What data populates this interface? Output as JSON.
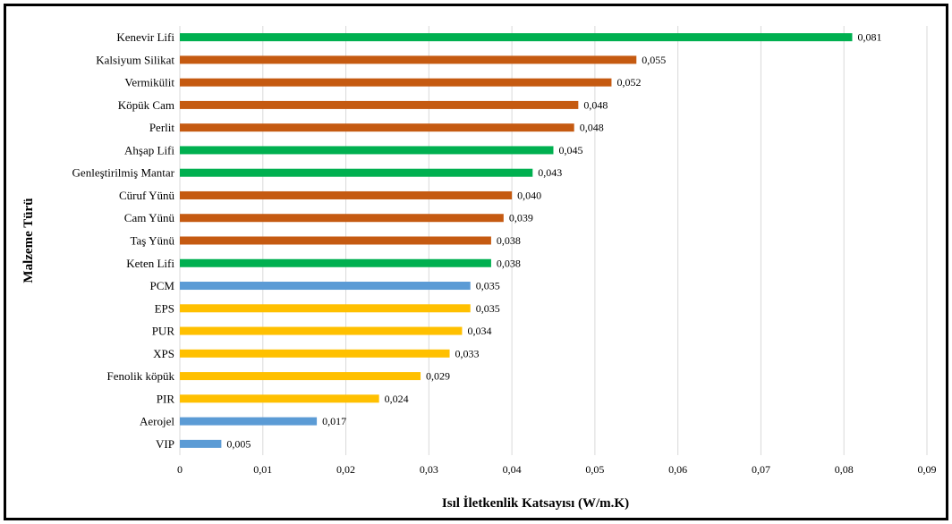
{
  "chart_data": {
    "type": "bar",
    "orientation": "horizontal",
    "title": "",
    "xlabel": "Isıl İletkenlik Katsayısı (W/m.K)",
    "ylabel": "Malzeme Türü",
    "xlim": [
      0,
      0.09
    ],
    "xticks": [
      0,
      0.01,
      0.02,
      0.03,
      0.04,
      0.05,
      0.06,
      0.07,
      0.08,
      0.09
    ],
    "xtick_labels": [
      "0",
      "0,01",
      "0,02",
      "0,03",
      "0,04",
      "0,05",
      "0,06",
      "0,07",
      "0,08",
      "0,09"
    ],
    "grid": "vertical",
    "legend": "none",
    "categories": [
      "Kenevir Lifi",
      "Kalsiyum Silikat",
      "Vermikülit",
      "Köpük Cam",
      "Perlit",
      "Ahşap Lifi",
      "Genleştirilmiş Mantar",
      "Cüruf Yünü",
      "Cam Yünü",
      "Taş Yünü",
      "Keten Lifi",
      "PCM",
      "EPS",
      "PUR",
      "XPS",
      "Fenolik köpük",
      "PIR",
      "Aerojel",
      "VIP"
    ],
    "values": [
      0.081,
      0.055,
      0.052,
      0.048,
      0.0475,
      0.045,
      0.0425,
      0.04,
      0.039,
      0.0375,
      0.0375,
      0.035,
      0.035,
      0.034,
      0.0325,
      0.029,
      0.024,
      0.0165,
      0.005
    ],
    "value_labels": [
      "0,081",
      "0,055",
      "0,052",
      "0,048",
      "0,048",
      "0,045",
      "0,043",
      "0,040",
      "0,039",
      "0,038",
      "0,038",
      "0,035",
      "0,035",
      "0,034",
      "0,033",
      "0,029",
      "0,024",
      "0,017",
      "0,005"
    ],
    "bar_colors": [
      "#00b050",
      "#c55a11",
      "#c55a11",
      "#c55a11",
      "#c55a11",
      "#00b050",
      "#00b050",
      "#c55a11",
      "#c55a11",
      "#c55a11",
      "#00b050",
      "#5b9bd5",
      "#ffc000",
      "#ffc000",
      "#ffc000",
      "#ffc000",
      "#ffc000",
      "#5b9bd5",
      "#5b9bd5"
    ]
  }
}
